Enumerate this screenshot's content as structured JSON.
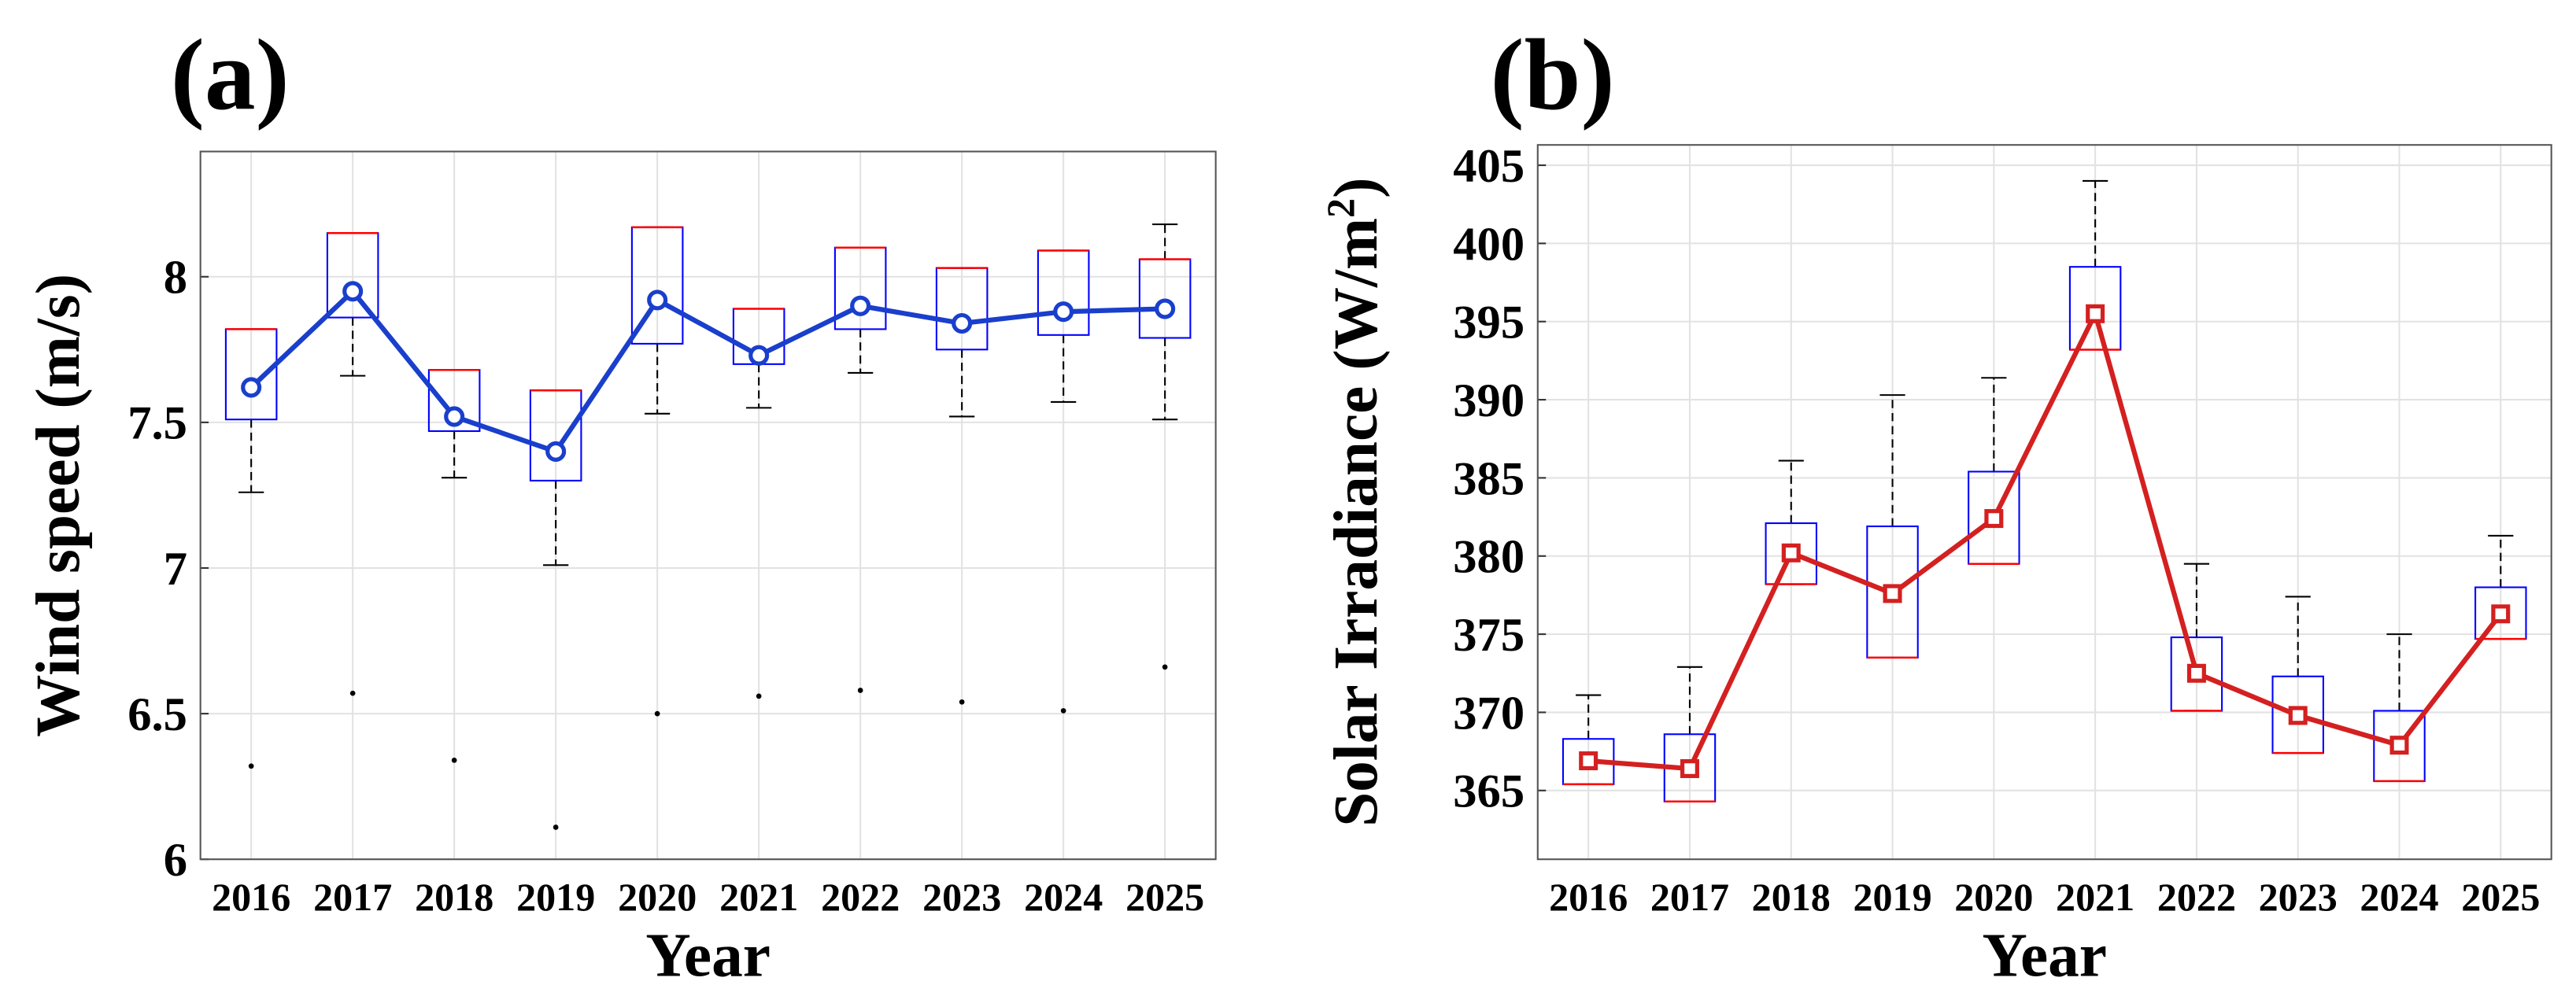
{
  "chart_data": [
    {
      "type": "box",
      "title": "(a)",
      "x_label": "Year",
      "y_label": "Wind speed (m/s)",
      "categories": [
        "2016",
        "2017",
        "2018",
        "2019",
        "2020",
        "2021",
        "2022",
        "2023",
        "2024",
        "2025"
      ],
      "ylim": [
        6,
        8.43
      ],
      "yticks": [
        6,
        6.5,
        7,
        7.5,
        8
      ],
      "grid": true,
      "box_color": "#0000ff",
      "median_color": "#ff0000",
      "marker": "circle",
      "boxes": {
        "whisker_low": [
          7.26,
          7.66,
          7.31,
          7.01,
          7.53,
          7.55,
          7.67,
          7.52,
          7.57,
          7.51
        ],
        "q1": [
          7.51,
          7.86,
          7.47,
          7.3,
          7.77,
          7.7,
          7.82,
          7.75,
          7.8,
          7.79
        ],
        "median": [
          7.82,
          8.15,
          7.68,
          7.61,
          8.17,
          7.89,
          8.1,
          8.03,
          8.09,
          8.06
        ],
        "q3": [
          7.82,
          8.15,
          7.68,
          7.61,
          8.17,
          7.89,
          8.1,
          8.03,
          8.09,
          8.06
        ],
        "whisker_high": [
          7.82,
          8.15,
          7.68,
          7.61,
          8.17,
          7.89,
          8.1,
          8.03,
          8.09,
          8.18
        ],
        "outliers": [
          [
            6.32
          ],
          [
            6.57
          ],
          [
            6.34
          ],
          [
            6.11
          ],
          [
            6.5
          ],
          [
            6.56
          ],
          [
            6.58
          ],
          [
            6.54
          ],
          [
            6.51
          ],
          [
            6.66
          ]
        ]
      },
      "series": [
        {
          "color": "#1a3fcc",
          "values": [
            7.62,
            7.95,
            7.52,
            7.4,
            7.92,
            7.73,
            7.9,
            7.84,
            7.88,
            7.89
          ]
        }
      ]
    },
    {
      "type": "box",
      "title": "(b)",
      "x_label": "Year",
      "y_label": "Solar Irradiance (W/m",
      "y_label_sup": "2",
      "y_label_end": ")",
      "categories": [
        "2016",
        "2017",
        "2018",
        "2019",
        "2020",
        "2021",
        "2022",
        "2023",
        "2024",
        "2025"
      ],
      "ylim": [
        360.6,
        406.3
      ],
      "yticks": [
        365,
        370,
        375,
        380,
        385,
        390,
        395,
        400,
        405
      ],
      "grid": true,
      "box_color": "#0000ff",
      "median_color": "#ff0000",
      "marker": "square",
      "boxes": {
        "whisker_low": [
          365.4,
          364.3,
          378.2,
          373.5,
          379.5,
          393.2,
          370.1,
          367.4,
          365.6,
          374.7
        ],
        "q1": [
          365.4,
          364.3,
          378.2,
          373.5,
          379.5,
          393.2,
          370.1,
          367.4,
          365.6,
          374.7
        ],
        "median": [
          365.4,
          364.3,
          378.2,
          373.5,
          379.5,
          393.2,
          370.1,
          367.4,
          365.6,
          374.7
        ],
        "q3": [
          368.3,
          368.6,
          382.1,
          381.9,
          385.4,
          398.5,
          374.8,
          372.3,
          370.1,
          378.0
        ],
        "whisker_high": [
          371.1,
          372.9,
          386.1,
          390.3,
          391.4,
          404.0,
          379.5,
          377.4,
          375.0,
          381.3
        ],
        "outliers": [
          [],
          [],
          [],
          [],
          [],
          [],
          [],
          [],
          [],
          []
        ]
      },
      "series": [
        {
          "color": "#d42020",
          "values": [
            366.9,
            366.4,
            380.2,
            377.6,
            382.4,
            395.5,
            372.5,
            369.8,
            367.9,
            376.3
          ]
        }
      ]
    }
  ]
}
